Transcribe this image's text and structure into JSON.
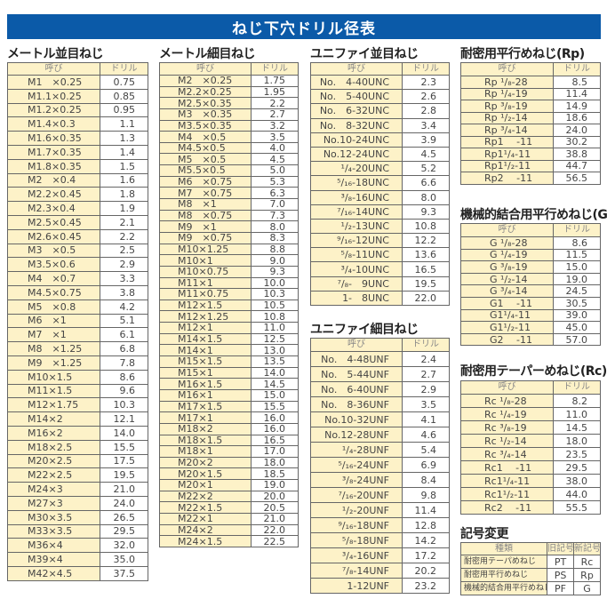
{
  "title": "ねじ下穴ドリル径表",
  "header": {
    "name": "呼び",
    "drill": "ドリル"
  },
  "colors": {
    "banner": "#0b5aa8",
    "name_cell": "#fdf2c8"
  },
  "tables": [
    {
      "id": "metric-coarse",
      "title": "メートル並目ねじ",
      "rows": [
        [
          "M1　×0.25",
          "0.75"
        ],
        [
          "M1.1×0.25",
          "0.85"
        ],
        [
          "M1.2×0.25",
          "0.95"
        ],
        [
          "M1.4×0.3",
          "1.1"
        ],
        [
          "M1.6×0.35",
          "1.3"
        ],
        [
          "M1.7×0.35",
          "1.4"
        ],
        [
          "M1.8×0.35",
          "1.5"
        ],
        [
          "M2　×0.4",
          "1.6"
        ],
        [
          "M2.2×0.45",
          "1.8"
        ],
        [
          "M2.3×0.4",
          "1.9"
        ],
        [
          "M2.5×0.45",
          "2.1"
        ],
        [
          "M2.6×0.45",
          "2.2"
        ],
        [
          "M3　×0.5",
          "2.5"
        ],
        [
          "M3.5×0.6",
          "2.9"
        ],
        [
          "M4　×0.7",
          "3.3"
        ],
        [
          "M4.5×0.75",
          "3.8"
        ],
        [
          "M5　×0.8",
          "4.2"
        ],
        [
          "M6　×1",
          "5.1"
        ],
        [
          "M7　×1",
          "6.1"
        ],
        [
          "M8　×1.25",
          "6.8"
        ],
        [
          "M9　×1.25",
          "7.8"
        ],
        [
          "M10×1.5",
          "8.6"
        ],
        [
          "M11×1.5",
          "9.6"
        ],
        [
          "M12×1.75",
          "10.3"
        ],
        [
          "M14×2",
          "12.1"
        ],
        [
          "M16×2",
          "14.0"
        ],
        [
          "M18×2.5",
          "15.5"
        ],
        [
          "M20×2.5",
          "17.5"
        ],
        [
          "M22×2.5",
          "19.5"
        ],
        [
          "M24×3",
          "21.0"
        ],
        [
          "M27×3",
          "24.0"
        ],
        [
          "M30×3.5",
          "26.5"
        ],
        [
          "M33×3.5",
          "29.5"
        ],
        [
          "M36×4",
          "32.0"
        ],
        [
          "M39×4",
          "35.0"
        ],
        [
          "M42×4.5",
          "37.5"
        ]
      ]
    },
    {
      "id": "metric-fine",
      "title": "メートル細目ねじ",
      "rows": [
        [
          "M2　×0.25",
          "1.75"
        ],
        [
          "M2.2×0.25",
          "1.95"
        ],
        [
          "M2.5×0.35",
          "2.2"
        ],
        [
          "M3　×0.35",
          "2.7"
        ],
        [
          "M3.5×0.35",
          "3.2"
        ],
        [
          "M4　×0.5",
          "3.5"
        ],
        [
          "M4.5×0.5",
          "4.0"
        ],
        [
          "M5　×0.5",
          "4.5"
        ],
        [
          "M5.5×0.5",
          "5.0"
        ],
        [
          "M6　×0.75",
          "5.3"
        ],
        [
          "M7　×0.75",
          "6.3"
        ],
        [
          "M8　×1",
          "7.0"
        ],
        [
          "M8　×0.75",
          "7.3"
        ],
        [
          "M9　×1",
          "8.0"
        ],
        [
          "M9　×0.75",
          "8.3"
        ],
        [
          "M10×1.25",
          "8.8"
        ],
        [
          "M10×1",
          "9.0"
        ],
        [
          "M10×0.75",
          "9.3"
        ],
        [
          "M11×1",
          "10.0"
        ],
        [
          "M11×0.75",
          "10.3"
        ],
        [
          "M12×1.5",
          "10.5"
        ],
        [
          "M12×1.25",
          "10.8"
        ],
        [
          "M12×1",
          "11.0"
        ],
        [
          "M14×1.5",
          "12.5"
        ],
        [
          "M14×1",
          "13.0"
        ],
        [
          "M15×1.5",
          "13.5"
        ],
        [
          "M15×1",
          "14.0"
        ],
        [
          "M16×1.5",
          "14.5"
        ],
        [
          "M16×1",
          "15.0"
        ],
        [
          "M17×1.5",
          "15.5"
        ],
        [
          "M17×1",
          "16.0"
        ],
        [
          "M18×2",
          "16.0"
        ],
        [
          "M18×1.5",
          "16.5"
        ],
        [
          "M18×1",
          "17.0"
        ],
        [
          "M20×2",
          "18.0"
        ],
        [
          "M20×1.5",
          "18.5"
        ],
        [
          "M20×1",
          "19.0"
        ],
        [
          "M22×2",
          "20.0"
        ],
        [
          "M22×1.5",
          "20.5"
        ],
        [
          "M22×1",
          "21.0"
        ],
        [
          "M24×2",
          "22.0"
        ],
        [
          "M24×1.5",
          "22.5"
        ]
      ]
    },
    {
      "id": "unc",
      "title": "ユニファイ並目ねじ",
      "rows": [
        [
          "No.　4-40UNC",
          "2.3"
        ],
        [
          "No.　5-40UNC",
          "2.6"
        ],
        [
          "No.　6-32UNC",
          "2.8"
        ],
        [
          "No.　8-32UNC",
          "3.4"
        ],
        [
          "No.10-24UNC",
          "3.9"
        ],
        [
          "No.12-24UNC",
          "4.5"
        ],
        [
          "¹/₄-20UNC",
          "5.2"
        ],
        [
          "⁵/₁₆-18UNC",
          "6.6"
        ],
        [
          "³/₈-16UNC",
          "8.0"
        ],
        [
          "⁷/₁₆-14UNC",
          "9.3"
        ],
        [
          "¹/₂-13UNC",
          "10.8"
        ],
        [
          "⁹/₁₆-12UNC",
          "12.2"
        ],
        [
          "⁵/₈-11UNC",
          "13.6"
        ],
        [
          "³/₄-10UNC",
          "16.5"
        ],
        [
          "⁷/₈-　9UNC",
          "19.5"
        ],
        [
          "1-　8UNC",
          "22.0"
        ]
      ]
    },
    {
      "id": "unf",
      "title": "ユニファイ細目ねじ",
      "rows": [
        [
          "No.　4-48UNF",
          "2.4"
        ],
        [
          "No.　5-44UNF",
          "2.7"
        ],
        [
          "No.　6-40UNF",
          "2.9"
        ],
        [
          "No.　8-36UNF",
          "3.5"
        ],
        [
          "No.10-32UNF",
          "4.1"
        ],
        [
          "No.12-28UNF",
          "4.6"
        ],
        [
          "¹/₄-28UNF",
          "5.4"
        ],
        [
          "⁵/₁₆-24UNF",
          "6.9"
        ],
        [
          "³/₈-24UNF",
          "8.4"
        ],
        [
          "⁷/₁₆-20UNF",
          "9.8"
        ],
        [
          "¹/₂-20UNF",
          "11.4"
        ],
        [
          "⁹/₁₆-18UNF",
          "12.8"
        ],
        [
          "⁵/₈-18UNF",
          "14.2"
        ],
        [
          "³/₄-16UNF",
          "17.2"
        ],
        [
          "⁷/₈-14UNF",
          "20.2"
        ],
        [
          "1-12UNF",
          "23.2"
        ]
      ]
    },
    {
      "id": "rp",
      "title": "耐密用平行めねじ(Rp)",
      "rows": [
        [
          "Rp ¹/₈-28",
          "8.5"
        ],
        [
          "Rp ¹/₄-19",
          "11.4"
        ],
        [
          "Rp ³/₈-19",
          "14.9"
        ],
        [
          "Rp ¹/₂-14",
          "18.6"
        ],
        [
          "Rp ³/₄-14",
          "24.0"
        ],
        [
          "Rp1　 -11",
          "30.2"
        ],
        [
          "Rp1¹/₄-11",
          "38.8"
        ],
        [
          "Rp1¹/₂-11",
          "44.7"
        ],
        [
          "Rp2　 -11",
          "56.5"
        ]
      ]
    },
    {
      "id": "g",
      "title": "機械的結合用平行めねじ(G)",
      "rows": [
        [
          "G ¹/₈-28",
          "8.6"
        ],
        [
          "G ¹/₄-19",
          "11.5"
        ],
        [
          "G ³/₈-19",
          "15.0"
        ],
        [
          "G ¹/₂-14",
          "19.0"
        ],
        [
          "G ³/₄-14",
          "24.5"
        ],
        [
          "G1　 -11",
          "30.5"
        ],
        [
          "G1¹/₄-11",
          "39.0"
        ],
        [
          "G1¹/₂-11",
          "45.0"
        ],
        [
          "G2　 -11",
          "57.0"
        ]
      ]
    },
    {
      "id": "rc",
      "title": "耐密用テーパーめねじ(Rc)",
      "rows": [
        [
          "Rc ¹/₈-28",
          "8.2"
        ],
        [
          "Rc ¹/₄-19",
          "11.0"
        ],
        [
          "Rc ³/₈-19",
          "14.5"
        ],
        [
          "Rc ¹/₂-14",
          "18.0"
        ],
        [
          "Rc ³/₄-14",
          "23.5"
        ],
        [
          "Rc1　 -11",
          "29.5"
        ],
        [
          "Rc1¹/₄-11",
          "38.0"
        ],
        [
          "Rc1¹/₂-11",
          "44.0"
        ],
        [
          "Rc2　 -11",
          "55.5"
        ]
      ]
    }
  ],
  "symbol_change": {
    "title": "記号変更",
    "headers": [
      "種類",
      "旧記号",
      "新記号"
    ],
    "rows": [
      [
        "耐密用テーパめねじ",
        "PT",
        "Rc"
      ],
      [
        "耐密用平行めねじ",
        "PS",
        "Rp"
      ],
      [
        "機械的結合用平行めねじ",
        "PF",
        "G"
      ]
    ]
  }
}
